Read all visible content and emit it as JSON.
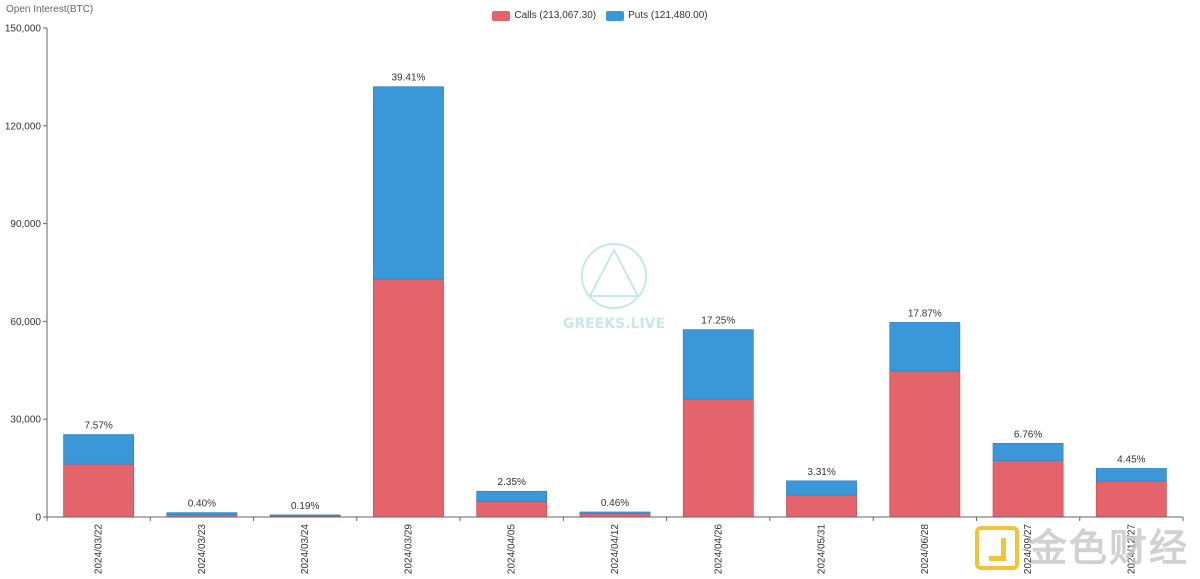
{
  "chart_data": {
    "type": "bar",
    "stacked": true,
    "ylabel": "Open Interest(BTC)",
    "ylim": [
      0,
      150000
    ],
    "yticks": [
      0,
      30000,
      60000,
      90000,
      120000,
      150000
    ],
    "ytick_labels": [
      "0",
      "30,000",
      "60,000",
      "90,000",
      "120,000",
      "150,000"
    ],
    "categories": [
      "2024/03/22",
      "2024/03/23",
      "2024/03/24",
      "2024/03/29",
      "2024/04/05",
      "2024/04/12",
      "2024/04/26",
      "2024/05/31",
      "2024/06/28",
      "2024/09/27",
      "2024/12/27"
    ],
    "series": [
      {
        "name": "Calls",
        "color": "#e5636a",
        "values": [
          16200,
          700,
          350,
          73000,
          4800,
          1000,
          36200,
          6800,
          44800,
          17300,
          11000
        ]
      },
      {
        "name": "Puts",
        "color": "#3a98d9",
        "values": [
          9100,
          650,
          300,
          59000,
          3100,
          550,
          21300,
          4300,
          14900,
          5300,
          3900
        ]
      }
    ],
    "percent_labels": [
      "7.57%",
      "0.40%",
      "0.19%",
      "39.41%",
      "2.35%",
      "0.46%",
      "17.25%",
      "3.31%",
      "17.87%",
      "6.76%",
      "4.45%"
    ],
    "legend": {
      "placement": "top-center",
      "items": [
        "Calls (213,067.30)",
        "Puts (121,480.00)"
      ]
    },
    "grid": false
  },
  "watermark": {
    "center_text": "GREEKS.LIVE",
    "corner_text": "金色财经"
  }
}
